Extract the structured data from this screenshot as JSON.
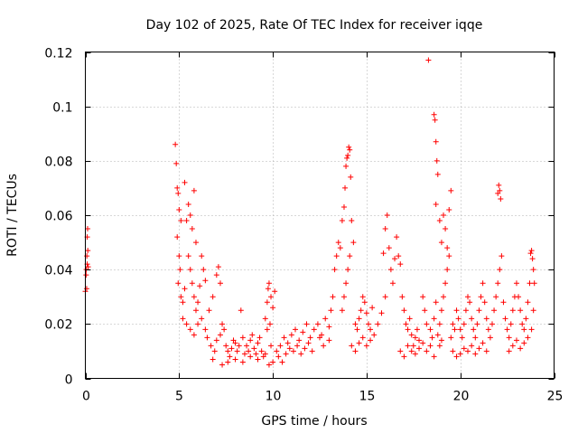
{
  "chart_data": {
    "type": "scatter",
    "title": "Day 102 of 2025, Rate Of TEC Index for receiver iqqe",
    "xlabel": "GPS time / hours",
    "ylabel": "ROTI / TECUs",
    "xlim": [
      0,
      25
    ],
    "ylim": [
      0,
      0.12
    ],
    "xticks": [
      0,
      5,
      10,
      15,
      20,
      25
    ],
    "xtick_labels": [
      "0",
      "5",
      "10",
      "15",
      "20",
      "25"
    ],
    "yticks": [
      0,
      0.02,
      0.04,
      0.06,
      0.08,
      0.1,
      0.12
    ],
    "ytick_labels": [
      "0",
      "0.02",
      "0.04",
      "0.06",
      "0.08",
      "0.1",
      "0.12"
    ],
    "grid": true,
    "marker": "+",
    "color": "#ff0000",
    "series": [
      {
        "name": "ROTI",
        "points": [
          [
            0.0,
            0.032
          ],
          [
            0.05,
            0.04
          ],
          [
            0.08,
            0.045
          ],
          [
            0.1,
            0.052
          ],
          [
            0.12,
            0.055
          ],
          [
            0.15,
            0.041
          ],
          [
            0.04,
            0.038
          ],
          [
            0.1,
            0.042
          ],
          [
            0.07,
            0.033
          ],
          [
            0.13,
            0.047
          ],
          [
            4.8,
            0.086
          ],
          [
            4.85,
            0.079
          ],
          [
            4.9,
            0.07
          ],
          [
            4.95,
            0.068
          ],
          [
            5.0,
            0.062
          ],
          [
            5.1,
            0.058
          ],
          [
            4.9,
            0.052
          ],
          [
            5.0,
            0.045
          ],
          [
            5.05,
            0.04
          ],
          [
            4.95,
            0.035
          ],
          [
            5.1,
            0.03
          ],
          [
            5.2,
            0.028
          ],
          [
            5.3,
            0.033
          ],
          [
            5.4,
            0.058
          ],
          [
            5.5,
            0.064
          ],
          [
            5.6,
            0.06
          ],
          [
            5.7,
            0.055
          ],
          [
            5.8,
            0.069
          ],
          [
            5.9,
            0.05
          ],
          [
            5.3,
            0.072
          ],
          [
            5.5,
            0.045
          ],
          [
            5.6,
            0.04
          ],
          [
            5.7,
            0.035
          ],
          [
            5.8,
            0.03
          ],
          [
            5.9,
            0.025
          ],
          [
            6.0,
            0.028
          ],
          [
            6.1,
            0.034
          ],
          [
            6.2,
            0.045
          ],
          [
            6.3,
            0.04
          ],
          [
            6.4,
            0.036
          ],
          [
            5.2,
            0.022
          ],
          [
            5.4,
            0.02
          ],
          [
            5.6,
            0.018
          ],
          [
            5.8,
            0.016
          ],
          [
            6.0,
            0.02
          ],
          [
            6.2,
            0.022
          ],
          [
            6.4,
            0.018
          ],
          [
            6.6,
            0.025
          ],
          [
            6.8,
            0.03
          ],
          [
            7.0,
            0.038
          ],
          [
            7.1,
            0.041
          ],
          [
            7.2,
            0.035
          ],
          [
            6.5,
            0.015
          ],
          [
            6.7,
            0.012
          ],
          [
            6.9,
            0.01
          ],
          [
            7.0,
            0.014
          ],
          [
            7.2,
            0.016
          ],
          [
            7.3,
            0.02
          ],
          [
            7.4,
            0.018
          ],
          [
            7.5,
            0.012
          ],
          [
            7.6,
            0.01
          ],
          [
            7.7,
            0.008
          ],
          [
            7.8,
            0.011
          ],
          [
            7.9,
            0.014
          ],
          [
            8.0,
            0.013
          ],
          [
            8.1,
            0.01
          ],
          [
            8.2,
            0.012
          ],
          [
            8.3,
            0.025
          ],
          [
            8.4,
            0.015
          ],
          [
            8.5,
            0.009
          ],
          [
            8.6,
            0.012
          ],
          [
            8.7,
            0.01
          ],
          [
            8.8,
            0.014
          ],
          [
            8.9,
            0.016
          ],
          [
            9.0,
            0.011
          ],
          [
            9.1,
            0.009
          ],
          [
            9.2,
            0.013
          ],
          [
            9.3,
            0.015
          ],
          [
            9.4,
            0.01
          ],
          [
            9.5,
            0.008
          ],
          [
            6.8,
            0.007
          ],
          [
            7.3,
            0.005
          ],
          [
            7.6,
            0.006
          ],
          [
            8.0,
            0.007
          ],
          [
            8.4,
            0.006
          ],
          [
            8.8,
            0.008
          ],
          [
            9.2,
            0.007
          ],
          [
            9.6,
            0.009
          ],
          [
            9.8,
            0.005
          ],
          [
            10.0,
            0.006
          ],
          [
            9.6,
            0.022
          ],
          [
            9.7,
            0.028
          ],
          [
            9.75,
            0.033
          ],
          [
            9.8,
            0.035
          ],
          [
            9.9,
            0.03
          ],
          [
            10.0,
            0.026
          ],
          [
            10.1,
            0.032
          ],
          [
            9.7,
            0.018
          ],
          [
            9.85,
            0.02
          ],
          [
            9.9,
            0.012
          ],
          [
            10.2,
            0.01
          ],
          [
            10.4,
            0.012
          ],
          [
            10.6,
            0.015
          ],
          [
            10.8,
            0.013
          ],
          [
            11.0,
            0.016
          ],
          [
            11.2,
            0.018
          ],
          [
            11.4,
            0.014
          ],
          [
            11.6,
            0.017
          ],
          [
            11.8,
            0.02
          ],
          [
            12.0,
            0.015
          ],
          [
            10.3,
            0.008
          ],
          [
            10.5,
            0.006
          ],
          [
            10.7,
            0.009
          ],
          [
            10.9,
            0.011
          ],
          [
            11.1,
            0.01
          ],
          [
            11.3,
            0.012
          ],
          [
            11.5,
            0.009
          ],
          [
            11.7,
            0.011
          ],
          [
            11.9,
            0.013
          ],
          [
            12.1,
            0.01
          ],
          [
            12.2,
            0.018
          ],
          [
            12.4,
            0.02
          ],
          [
            12.6,
            0.016
          ],
          [
            12.8,
            0.022
          ],
          [
            13.0,
            0.019
          ],
          [
            13.1,
            0.025
          ],
          [
            13.2,
            0.03
          ],
          [
            13.0,
            0.014
          ],
          [
            12.7,
            0.012
          ],
          [
            12.5,
            0.015
          ],
          [
            13.3,
            0.04
          ],
          [
            13.4,
            0.045
          ],
          [
            13.5,
            0.05
          ],
          [
            13.6,
            0.048
          ],
          [
            13.7,
            0.058
          ],
          [
            13.8,
            0.063
          ],
          [
            13.85,
            0.07
          ],
          [
            13.9,
            0.078
          ],
          [
            14.0,
            0.082
          ],
          [
            14.05,
            0.085
          ],
          [
            13.95,
            0.081
          ],
          [
            14.1,
            0.084
          ],
          [
            14.15,
            0.074
          ],
          [
            14.2,
            0.058
          ],
          [
            14.3,
            0.05
          ],
          [
            14.1,
            0.045
          ],
          [
            14.0,
            0.04
          ],
          [
            13.9,
            0.035
          ],
          [
            13.8,
            0.03
          ],
          [
            13.7,
            0.025
          ],
          [
            14.4,
            0.02
          ],
          [
            14.5,
            0.018
          ],
          [
            14.6,
            0.022
          ],
          [
            14.7,
            0.025
          ],
          [
            14.8,
            0.03
          ],
          [
            14.9,
            0.028
          ],
          [
            15.0,
            0.024
          ],
          [
            15.1,
            0.02
          ],
          [
            15.2,
            0.018
          ],
          [
            15.3,
            0.026
          ],
          [
            14.2,
            0.012
          ],
          [
            14.4,
            0.01
          ],
          [
            14.6,
            0.013
          ],
          [
            14.8,
            0.015
          ],
          [
            15.0,
            0.012
          ],
          [
            15.2,
            0.014
          ],
          [
            15.4,
            0.016
          ],
          [
            15.6,
            0.02
          ],
          [
            15.8,
            0.024
          ],
          [
            16.0,
            0.03
          ],
          [
            15.9,
            0.046
          ],
          [
            16.0,
            0.055
          ],
          [
            16.1,
            0.06
          ],
          [
            16.2,
            0.048
          ],
          [
            16.3,
            0.04
          ],
          [
            16.4,
            0.035
          ],
          [
            16.5,
            0.044
          ],
          [
            16.6,
            0.052
          ],
          [
            16.7,
            0.045
          ],
          [
            16.8,
            0.042
          ],
          [
            16.9,
            0.03
          ],
          [
            17.0,
            0.025
          ],
          [
            17.1,
            0.02
          ],
          [
            17.2,
            0.018
          ],
          [
            17.3,
            0.022
          ],
          [
            17.4,
            0.016
          ],
          [
            17.5,
            0.012
          ],
          [
            17.6,
            0.015
          ],
          [
            17.7,
            0.018
          ],
          [
            17.8,
            0.014
          ],
          [
            16.8,
            0.01
          ],
          [
            17.0,
            0.008
          ],
          [
            17.2,
            0.012
          ],
          [
            17.4,
            0.01
          ],
          [
            17.6,
            0.009
          ],
          [
            17.8,
            0.011
          ],
          [
            18.0,
            0.013
          ],
          [
            18.2,
            0.01
          ],
          [
            18.4,
            0.012
          ],
          [
            18.6,
            0.008
          ],
          [
            18.3,
            0.117
          ],
          [
            18.6,
            0.097
          ],
          [
            18.65,
            0.095
          ],
          [
            18.7,
            0.087
          ],
          [
            18.75,
            0.08
          ],
          [
            18.8,
            0.075
          ],
          [
            18.7,
            0.064
          ],
          [
            18.9,
            0.058
          ],
          [
            19.0,
            0.05
          ],
          [
            19.1,
            0.06
          ],
          [
            19.2,
            0.055
          ],
          [
            19.3,
            0.048
          ],
          [
            19.4,
            0.062
          ],
          [
            19.5,
            0.069
          ],
          [
            19.4,
            0.045
          ],
          [
            19.3,
            0.04
          ],
          [
            19.2,
            0.035
          ],
          [
            19.1,
            0.03
          ],
          [
            19.0,
            0.025
          ],
          [
            18.9,
            0.02
          ],
          [
            18.0,
            0.03
          ],
          [
            18.1,
            0.025
          ],
          [
            18.2,
            0.02
          ],
          [
            18.4,
            0.018
          ],
          [
            18.5,
            0.015
          ],
          [
            18.6,
            0.022
          ],
          [
            18.7,
            0.028
          ],
          [
            18.8,
            0.016
          ],
          [
            18.9,
            0.012
          ],
          [
            19.0,
            0.014
          ],
          [
            19.5,
            0.015
          ],
          [
            19.6,
            0.02
          ],
          [
            19.7,
            0.018
          ],
          [
            19.8,
            0.025
          ],
          [
            19.9,
            0.022
          ],
          [
            20.0,
            0.018
          ],
          [
            20.1,
            0.015
          ],
          [
            20.2,
            0.02
          ],
          [
            20.3,
            0.025
          ],
          [
            20.4,
            0.03
          ],
          [
            20.5,
            0.028
          ],
          [
            20.6,
            0.022
          ],
          [
            20.7,
            0.018
          ],
          [
            20.8,
            0.015
          ],
          [
            20.9,
            0.02
          ],
          [
            21.0,
            0.025
          ],
          [
            21.1,
            0.03
          ],
          [
            21.2,
            0.035
          ],
          [
            21.3,
            0.028
          ],
          [
            21.4,
            0.022
          ],
          [
            19.6,
            0.01
          ],
          [
            19.8,
            0.008
          ],
          [
            20.0,
            0.009
          ],
          [
            20.2,
            0.011
          ],
          [
            20.4,
            0.01
          ],
          [
            20.6,
            0.012
          ],
          [
            20.8,
            0.009
          ],
          [
            21.0,
            0.011
          ],
          [
            21.2,
            0.013
          ],
          [
            21.4,
            0.01
          ],
          [
            21.5,
            0.018
          ],
          [
            21.6,
            0.015
          ],
          [
            21.7,
            0.02
          ],
          [
            21.8,
            0.025
          ],
          [
            21.9,
            0.03
          ],
          [
            22.0,
            0.035
          ],
          [
            22.1,
            0.04
          ],
          [
            22.2,
            0.045
          ],
          [
            22.0,
            0.068
          ],
          [
            22.05,
            0.071
          ],
          [
            22.1,
            0.069
          ],
          [
            22.15,
            0.066
          ],
          [
            22.3,
            0.028
          ],
          [
            22.4,
            0.022
          ],
          [
            22.5,
            0.018
          ],
          [
            22.6,
            0.015
          ],
          [
            22.7,
            0.02
          ],
          [
            22.8,
            0.025
          ],
          [
            22.9,
            0.03
          ],
          [
            23.0,
            0.035
          ],
          [
            23.1,
            0.03
          ],
          [
            23.2,
            0.025
          ],
          [
            23.3,
            0.02
          ],
          [
            23.4,
            0.018
          ],
          [
            23.5,
            0.022
          ],
          [
            23.6,
            0.028
          ],
          [
            23.7,
            0.035
          ],
          [
            23.75,
            0.046
          ],
          [
            23.8,
            0.047
          ],
          [
            23.85,
            0.044
          ],
          [
            23.9,
            0.04
          ],
          [
            23.95,
            0.035
          ],
          [
            22.6,
            0.01
          ],
          [
            22.8,
            0.012
          ],
          [
            23.0,
            0.014
          ],
          [
            23.2,
            0.011
          ],
          [
            23.4,
            0.013
          ],
          [
            23.6,
            0.015
          ],
          [
            23.8,
            0.018
          ],
          [
            23.9,
            0.025
          ]
        ]
      }
    ]
  }
}
